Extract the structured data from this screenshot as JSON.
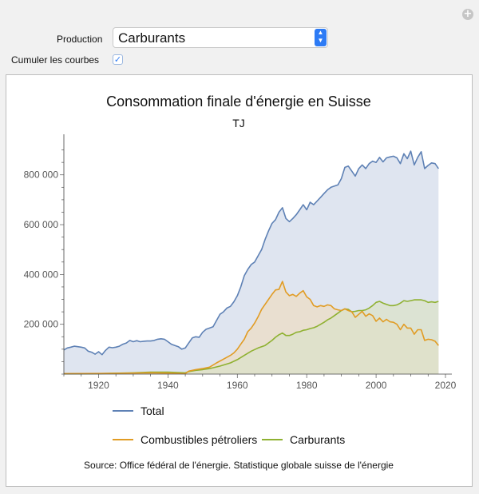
{
  "controls": {
    "production_label": "Production",
    "production_value": "Carburants",
    "cumulate_label": "Cumuler les courbes",
    "cumulate_checked": true
  },
  "chart_data": {
    "type": "area",
    "stacked": true,
    "title": "Consommation finale d'énergie en Suisse",
    "subtitle": "TJ",
    "source": "Source: Office fédéral de l'énergie. Statistique globale suisse de l'énergie",
    "xlim": [
      1910,
      2020
    ],
    "ylim": [
      0,
      950000
    ],
    "x_ticks": [
      1920,
      1940,
      1960,
      1980,
      2000,
      2020
    ],
    "y_ticks": [
      200000,
      400000,
      600000,
      800000
    ],
    "y_tick_labels": [
      "200 000",
      "400 000",
      "600 000",
      "800 000"
    ],
    "grid": false,
    "legend_position": "bottom",
    "series": [
      {
        "name": "Total",
        "color": "#5e81b5",
        "fill": "#dfe5f0",
        "points": [
          [
            1910,
            97000
          ],
          [
            1911,
            105000
          ],
          [
            1912,
            108000
          ],
          [
            1913,
            112000
          ],
          [
            1914,
            110000
          ],
          [
            1915,
            108000
          ],
          [
            1916,
            105000
          ],
          [
            1917,
            92000
          ],
          [
            1918,
            88000
          ],
          [
            1919,
            80000
          ],
          [
            1920,
            90000
          ],
          [
            1921,
            78000
          ],
          [
            1922,
            95000
          ],
          [
            1923,
            108000
          ],
          [
            1924,
            106000
          ],
          [
            1925,
            108000
          ],
          [
            1926,
            112000
          ],
          [
            1927,
            120000
          ],
          [
            1928,
            125000
          ],
          [
            1929,
            135000
          ],
          [
            1930,
            130000
          ],
          [
            1931,
            134000
          ],
          [
            1932,
            130000
          ],
          [
            1933,
            132000
          ],
          [
            1934,
            133000
          ],
          [
            1935,
            133000
          ],
          [
            1936,
            135000
          ],
          [
            1937,
            140000
          ],
          [
            1938,
            142000
          ],
          [
            1939,
            140000
          ],
          [
            1940,
            130000
          ],
          [
            1941,
            120000
          ],
          [
            1942,
            115000
          ],
          [
            1943,
            110000
          ],
          [
            1944,
            100000
          ],
          [
            1945,
            105000
          ],
          [
            1946,
            125000
          ],
          [
            1947,
            145000
          ],
          [
            1948,
            150000
          ],
          [
            1949,
            148000
          ],
          [
            1950,
            168000
          ],
          [
            1951,
            180000
          ],
          [
            1952,
            185000
          ],
          [
            1953,
            190000
          ],
          [
            1954,
            215000
          ],
          [
            1955,
            240000
          ],
          [
            1956,
            250000
          ],
          [
            1957,
            265000
          ],
          [
            1958,
            272000
          ],
          [
            1959,
            290000
          ],
          [
            1960,
            315000
          ],
          [
            1961,
            350000
          ],
          [
            1962,
            395000
          ],
          [
            1963,
            420000
          ],
          [
            1964,
            440000
          ],
          [
            1965,
            450000
          ],
          [
            1966,
            475000
          ],
          [
            1967,
            500000
          ],
          [
            1968,
            540000
          ],
          [
            1969,
            575000
          ],
          [
            1970,
            605000
          ],
          [
            1971,
            620000
          ],
          [
            1972,
            650000
          ],
          [
            1973,
            668000
          ],
          [
            1974,
            625000
          ],
          [
            1975,
            612000
          ],
          [
            1976,
            625000
          ],
          [
            1977,
            640000
          ],
          [
            1978,
            660000
          ],
          [
            1979,
            680000
          ],
          [
            1980,
            660000
          ],
          [
            1981,
            690000
          ],
          [
            1982,
            680000
          ],
          [
            1983,
            695000
          ],
          [
            1984,
            710000
          ],
          [
            1985,
            725000
          ],
          [
            1986,
            740000
          ],
          [
            1987,
            750000
          ],
          [
            1988,
            755000
          ],
          [
            1989,
            760000
          ],
          [
            1990,
            785000
          ],
          [
            1991,
            830000
          ],
          [
            1992,
            835000
          ],
          [
            1993,
            815000
          ],
          [
            1994,
            795000
          ],
          [
            1995,
            825000
          ],
          [
            1996,
            840000
          ],
          [
            1997,
            825000
          ],
          [
            1998,
            845000
          ],
          [
            1999,
            855000
          ],
          [
            2000,
            850000
          ],
          [
            2001,
            870000
          ],
          [
            2002,
            852000
          ],
          [
            2003,
            868000
          ],
          [
            2004,
            872000
          ],
          [
            2005,
            875000
          ],
          [
            2006,
            868000
          ],
          [
            2007,
            845000
          ],
          [
            2008,
            885000
          ],
          [
            2009,
            865000
          ],
          [
            2010,
            895000
          ],
          [
            2011,
            840000
          ],
          [
            2012,
            870000
          ],
          [
            2013,
            893000
          ],
          [
            2014,
            825000
          ],
          [
            2015,
            838000
          ],
          [
            2016,
            848000
          ],
          [
            2017,
            845000
          ],
          [
            2018,
            825000
          ]
        ]
      },
      {
        "name": "Combustibles pétroliers",
        "color": "#e19c24",
        "fill": "#ecdcc6",
        "points": [
          [
            1910,
            2000
          ],
          [
            1925,
            3000
          ],
          [
            1935,
            5000
          ],
          [
            1940,
            4000
          ],
          [
            1945,
            2000
          ],
          [
            1946,
            12000
          ],
          [
            1948,
            18000
          ],
          [
            1950,
            22000
          ],
          [
            1952,
            28000
          ],
          [
            1954,
            45000
          ],
          [
            1956,
            60000
          ],
          [
            1958,
            75000
          ],
          [
            1959,
            85000
          ],
          [
            1960,
            100000
          ],
          [
            1961,
            120000
          ],
          [
            1962,
            140000
          ],
          [
            1963,
            170000
          ],
          [
            1964,
            185000
          ],
          [
            1965,
            205000
          ],
          [
            1966,
            230000
          ],
          [
            1967,
            260000
          ],
          [
            1968,
            280000
          ],
          [
            1969,
            300000
          ],
          [
            1970,
            320000
          ],
          [
            1971,
            338000
          ],
          [
            1972,
            340000
          ],
          [
            1973,
            372000
          ],
          [
            1974,
            330000
          ],
          [
            1975,
            315000
          ],
          [
            1976,
            320000
          ],
          [
            1977,
            312000
          ],
          [
            1978,
            325000
          ],
          [
            1979,
            335000
          ],
          [
            1980,
            310000
          ],
          [
            1981,
            300000
          ],
          [
            1982,
            275000
          ],
          [
            1983,
            270000
          ],
          [
            1984,
            275000
          ],
          [
            1985,
            272000
          ],
          [
            1986,
            278000
          ],
          [
            1987,
            275000
          ],
          [
            1988,
            262000
          ],
          [
            1989,
            258000
          ],
          [
            1990,
            255000
          ],
          [
            1991,
            262000
          ],
          [
            1992,
            255000
          ],
          [
            1993,
            250000
          ],
          [
            1994,
            228000
          ],
          [
            1995,
            240000
          ],
          [
            1996,
            252000
          ],
          [
            1997,
            232000
          ],
          [
            1998,
            242000
          ],
          [
            1999,
            235000
          ],
          [
            2000,
            212000
          ],
          [
            2001,
            225000
          ],
          [
            2002,
            210000
          ],
          [
            2003,
            220000
          ],
          [
            2004,
            210000
          ],
          [
            2005,
            208000
          ],
          [
            2006,
            200000
          ],
          [
            2007,
            178000
          ],
          [
            2008,
            200000
          ],
          [
            2009,
            185000
          ],
          [
            2010,
            185000
          ],
          [
            2011,
            160000
          ],
          [
            2012,
            178000
          ],
          [
            2013,
            178000
          ],
          [
            2014,
            135000
          ],
          [
            2015,
            140000
          ],
          [
            2016,
            138000
          ],
          [
            2017,
            132000
          ],
          [
            2018,
            115000
          ]
        ]
      },
      {
        "name": "Carburants",
        "color": "#8fb131",
        "fill": "#dbe2ca",
        "points": [
          [
            1910,
            1000
          ],
          [
            1920,
            2000
          ],
          [
            1930,
            5000
          ],
          [
            1935,
            8000
          ],
          [
            1940,
            8000
          ],
          [
            1945,
            5000
          ],
          [
            1946,
            10000
          ],
          [
            1948,
            15000
          ],
          [
            1950,
            18000
          ],
          [
            1952,
            22000
          ],
          [
            1955,
            32000
          ],
          [
            1958,
            45000
          ],
          [
            1960,
            58000
          ],
          [
            1962,
            75000
          ],
          [
            1964,
            92000
          ],
          [
            1966,
            105000
          ],
          [
            1968,
            115000
          ],
          [
            1970,
            135000
          ],
          [
            1971,
            148000
          ],
          [
            1972,
            158000
          ],
          [
            1973,
            165000
          ],
          [
            1974,
            155000
          ],
          [
            1975,
            155000
          ],
          [
            1976,
            160000
          ],
          [
            1977,
            168000
          ],
          [
            1978,
            170000
          ],
          [
            1979,
            176000
          ],
          [
            1980,
            178000
          ],
          [
            1981,
            183000
          ],
          [
            1982,
            186000
          ],
          [
            1983,
            192000
          ],
          [
            1984,
            200000
          ],
          [
            1985,
            208000
          ],
          [
            1986,
            218000
          ],
          [
            1987,
            225000
          ],
          [
            1988,
            235000
          ],
          [
            1989,
            245000
          ],
          [
            1990,
            255000
          ],
          [
            1991,
            262000
          ],
          [
            1992,
            260000
          ],
          [
            1993,
            250000
          ],
          [
            1994,
            252000
          ],
          [
            1995,
            255000
          ],
          [
            1996,
            255000
          ],
          [
            1997,
            258000
          ],
          [
            1998,
            265000
          ],
          [
            1999,
            275000
          ],
          [
            2000,
            288000
          ],
          [
            2001,
            292000
          ],
          [
            2002,
            285000
          ],
          [
            2003,
            280000
          ],
          [
            2004,
            275000
          ],
          [
            2005,
            275000
          ],
          [
            2006,
            278000
          ],
          [
            2007,
            285000
          ],
          [
            2008,
            295000
          ],
          [
            2009,
            292000
          ],
          [
            2010,
            295000
          ],
          [
            2011,
            298000
          ],
          [
            2012,
            298000
          ],
          [
            2013,
            298000
          ],
          [
            2014,
            295000
          ],
          [
            2015,
            288000
          ],
          [
            2016,
            290000
          ],
          [
            2017,
            288000
          ],
          [
            2018,
            292000
          ]
        ]
      }
    ]
  }
}
